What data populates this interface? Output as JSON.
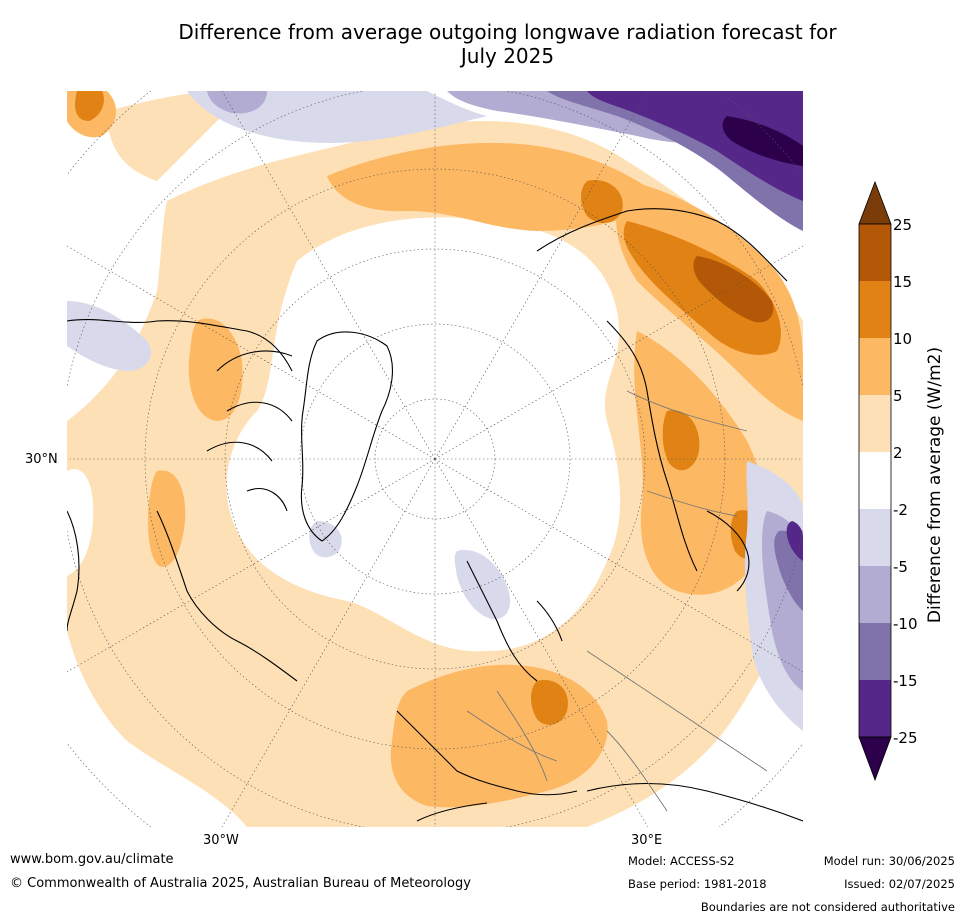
{
  "title_line1": "Difference from average outgoing longwave radiation forecast for",
  "title_line2": "July 2025",
  "axis_labels": {
    "lat_30n": "30°N",
    "lon_30w": "30°W",
    "lon_30e": "30°E"
  },
  "colorbar": {
    "label": "Difference from average (W/m2)",
    "ticks": [
      "25",
      "15",
      "10",
      "5",
      "2",
      "-2",
      "-5",
      "-10",
      "-15",
      "-25"
    ],
    "colors": {
      "over": "#7a3d0a",
      "b15_25": "#b35806",
      "b10_15": "#e08214",
      "b5_10": "#fdb863",
      "b2_5": "#fee0b6",
      "neutral": "#ffffff",
      "bm5_m2": "#d8daeb",
      "bm10_m5": "#b2abd2",
      "bm15_m10": "#8073ac",
      "bm25_m15": "#542788",
      "under": "#2d004b"
    }
  },
  "footer": {
    "website": "www.bom.gov.au/climate",
    "copyright": "© Commonwealth of Australia 2025, Australian Bureau of Meteorology",
    "model": "Model: ACCESS-S2",
    "base_period": "Base period: 1981-2018",
    "model_run": "Model run: 30/06/2025",
    "issued": "Issued: 02/07/2025",
    "disclaimer": "Boundaries are not considered authoritative"
  }
}
